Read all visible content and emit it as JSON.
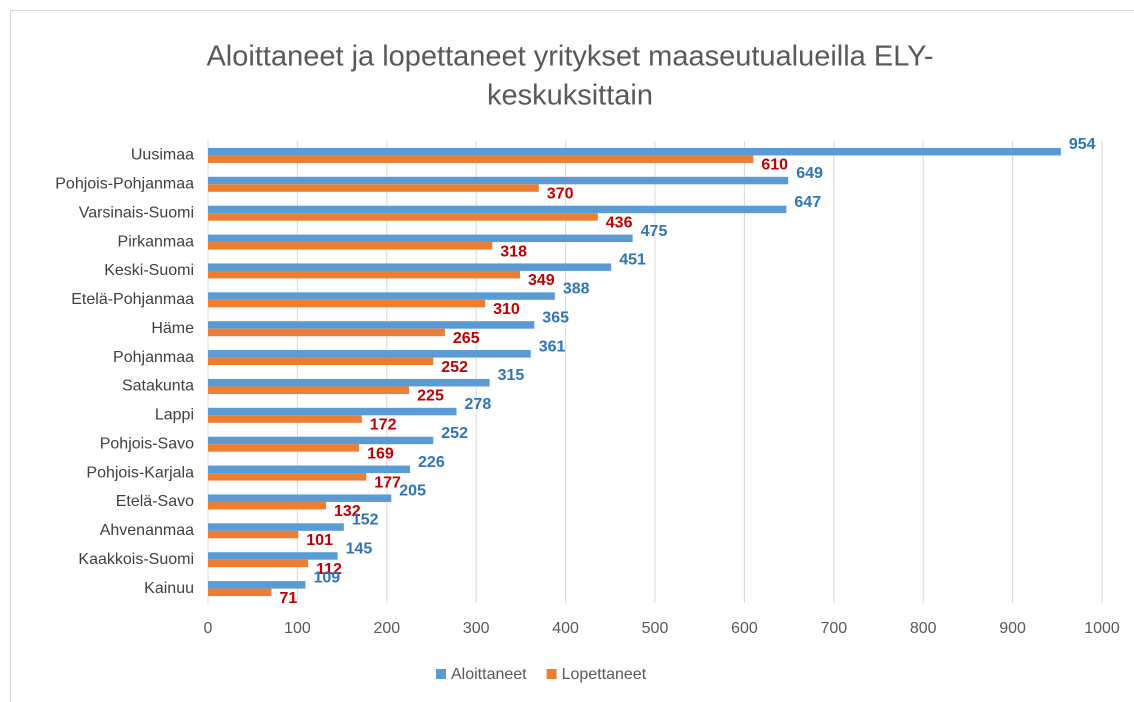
{
  "chart_data": {
    "type": "hbar",
    "title": [
      "Aloittaneet ja lopettaneet yritykset maaseutualueilla ELY-",
      "keskuksittain"
    ],
    "categories": [
      "Uusimaa",
      "Pohjois-Pohjanmaa",
      "Varsinais-Suomi",
      "Pirkanmaa",
      "Keski-Suomi",
      "Etelä-Pohjanmaa",
      "Häme",
      "Pohjanmaa",
      "Satakunta",
      "Lappi",
      "Pohjois-Savo",
      "Pohjois-Karjala",
      "Etelä-Savo",
      "Ahvenanmaa",
      "Kaakkois-Suomi",
      "Kainuu"
    ],
    "series": [
      {
        "name": "Aloittaneet",
        "color": "#5b9bd5",
        "label_color": "#2e75b6",
        "values": [
          954,
          649,
          647,
          475,
          451,
          388,
          365,
          361,
          315,
          278,
          252,
          226,
          205,
          152,
          145,
          109
        ]
      },
      {
        "name": "Lopettaneet",
        "color": "#ed7d31",
        "label_color": "#c00000",
        "values": [
          610,
          370,
          436,
          318,
          349,
          310,
          265,
          252,
          225,
          172,
          169,
          177,
          132,
          101,
          112,
          71
        ]
      }
    ],
    "xlim": [
      0,
      1000
    ],
    "xticks": [
      0,
      100,
      200,
      300,
      400,
      500,
      600,
      700,
      800,
      900,
      1000
    ],
    "grid": true,
    "legend": "bottom"
  }
}
